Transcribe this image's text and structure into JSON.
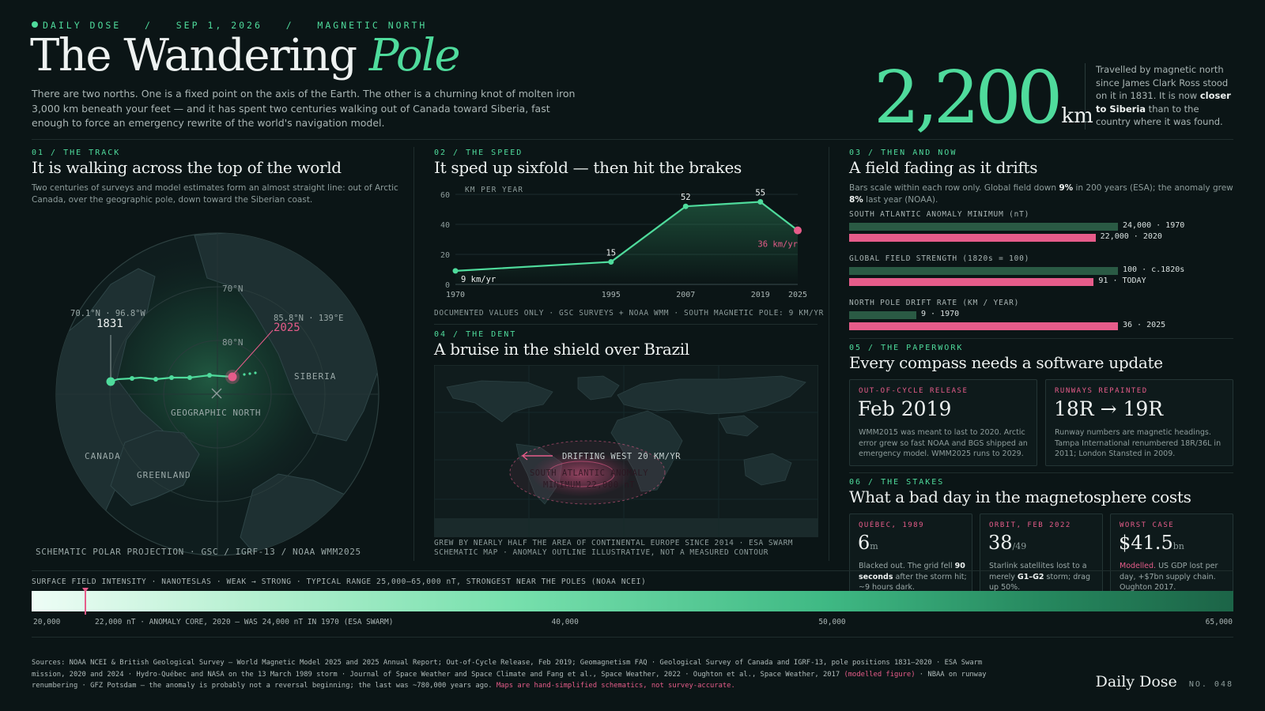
{
  "header": {
    "kicker_publication": "DAILY DOSE",
    "kicker_sep": "/",
    "kicker_date": "SEP 1, 2026",
    "kicker_topic": "MAGNETIC NORTH",
    "title_main": "The Wandering",
    "title_accent": "Pole",
    "intro": "There are two norths. One is a fixed point on the axis of the Earth. The other is a churning knot of molten iron 3,000 km beneath your feet — and it has spent two centuries walking out of Canada toward Siberia, fast enough to force an emergency rewrite of the world's navigation model.",
    "stat_value": "2,200",
    "stat_unit": "km",
    "stat_desc_1": "Travelled by magnetic north since James Clark Ross stood on it in 1831. It is now ",
    "stat_desc_bold": "closer to Siberia",
    "stat_desc_2": " than to the country where it was found."
  },
  "track": {
    "kicker": "01 / THE TRACK",
    "title": "It is walking across the top of the world",
    "desc": "Two centuries of surveys and model estimates form an almost straight line: out of Arctic Canada, over the geographic pole, down toward the Siberian coast.",
    "label_70n": "70°N",
    "label_80n": "80°N",
    "start_coord": "70.1°N · 96.8°W",
    "start_year": "1831",
    "end_coord": "85.8°N · 139°E",
    "end_year": "2025",
    "siberia": "SIBERIA",
    "geo_north": "GEOGRAPHIC NORTH",
    "canada": "CANADA",
    "greenland": "GREENLAND",
    "footer": "SCHEMATIC POLAR PROJECTION · GSC / IGRF-13 / NOAA WMM2025"
  },
  "speed": {
    "kicker": "02 / THE SPEED",
    "title": "It sped up sixfold — then hit the brakes",
    "unit_label": "KM PER YEAR",
    "footer": "DOCUMENTED VALUES ONLY · GSC SURVEYS + NOAA WMM · SOUTH MAGNETIC POLE: 9 KM/YR",
    "chart_data": {
      "type": "line",
      "x": [
        1970,
        1995,
        2007,
        2019,
        2025
      ],
      "values": [
        9,
        15,
        52,
        55,
        36
      ],
      "point_labels": [
        "9 km/yr",
        "15",
        "52",
        "55",
        "36 km/yr"
      ],
      "x_ticks": [
        "1970",
        "1995",
        "2007",
        "2019",
        "2025"
      ],
      "y_ticks": [
        "0",
        "20",
        "40",
        "60"
      ],
      "ylim": [
        0,
        60
      ],
      "xlim": [
        1970,
        2025
      ],
      "ylabel": "KM PER YEAR"
    }
  },
  "dent": {
    "kicker": "04 / THE DENT",
    "title": "A bruise in the shield over Brazil",
    "drift_label": "DRIFTING WEST 20 KM/YR",
    "anomaly_line1": "SOUTH ATLANTIC ANOMALY",
    "anomaly_line2": "MINIMUM 22,000 nT",
    "footer_line1": "GREW BY NEARLY HALF THE AREA OF CONTINENTAL EUROPE SINCE 2014 · ESA SWARM",
    "footer_line2": "SCHEMATIC MAP · ANOMALY OUTLINE ILLUSTRATIVE, NOT A MEASURED CONTOUR"
  },
  "then_now": {
    "kicker": "03 / THEN AND NOW",
    "title": "A field fading as it drifts",
    "desc_1": "Bars scale within each row only. Global field down ",
    "desc_b1": "9%",
    "desc_2": " in 200 years (ESA); the anomaly grew ",
    "desc_b2": "8%",
    "desc_3": " last year (NOAA).",
    "rows": [
      {
        "label": "SOUTH ATLANTIC ANOMALY MINIMUM (nT)",
        "then_value": 24000,
        "now_value": 22000,
        "then_text": "24,000 · 1970",
        "now_text": "22,000 · 2020"
      },
      {
        "label": "GLOBAL FIELD STRENGTH (1820s = 100)",
        "then_value": 100,
        "now_value": 91,
        "then_text": "100 · c.1820s",
        "now_text": "91 · TODAY"
      },
      {
        "label": "NORTH POLE DRIFT RATE (KM / YEAR)",
        "then_value": 9,
        "now_value": 36,
        "then_text": "9 · 1970",
        "now_text": "36 · 2025"
      }
    ]
  },
  "paperwork": {
    "kicker": "05 / THE PAPERWORK",
    "title": "Every compass needs a software update",
    "card1_kicker": "OUT-OF-CYCLE RELEASE",
    "card1_value": "Feb 2019",
    "card1_desc": "WMM2015 was meant to last to 2020. Arctic error grew so fast NOAA and BGS shipped an emergency model. WMM2025 runs to 2029.",
    "card2_kicker": "RUNWAYS REPAINTED",
    "card2_value": "18R → 19R",
    "card2_desc": "Runway numbers are magnetic headings. Tampa International renumbered 18R/36L in 2011; London Stansted in 2009."
  },
  "stakes": {
    "kicker": "06 / THE STAKES",
    "title": "What a bad day in the magnetosphere costs",
    "card1_kicker": "QUÉBEC, 1989",
    "card1_value": "6",
    "card1_unit": "m",
    "card1_desc_1": "Blacked out. The grid fell ",
    "card1_desc_b": "90 seconds",
    "card1_desc_2": " after the storm hit; ~9 hours dark.",
    "card2_kicker": "ORBIT, FEB 2022",
    "card2_value": "38",
    "card2_unit": "/49",
    "card2_desc_1": "Starlink satellites lost to a merely ",
    "card2_desc_b": "G1–G2",
    "card2_desc_2": " storm; drag up 50%.",
    "card3_kicker": "WORST CASE",
    "card3_value": "$41.5",
    "card3_unit": "bn",
    "card3_desc_p": "Modelled.",
    "card3_desc_2": " US GDP lost per day, +$7bn supply chain. Oughton 2017."
  },
  "scale": {
    "caption": "SURFACE FIELD INTENSITY · NANOTESLAS · WEAK → STRONG · TYPICAL RANGE 25,000–65,000 nT, STRONGEST NEAR THE POLES (NOAA NCEI)",
    "min_label": "20,000",
    "marker_label": "22,000 nT · ANOMALY CORE, 2020 — WAS 24,000 nT IN 1970 (ESA SWARM)",
    "tick_40": "40,000",
    "tick_50": "50,000",
    "max_label": "65,000",
    "marker_value": 22000,
    "range": [
      20000,
      65000
    ],
    "colors": [
      "#eefdf6",
      "#4fdb9c",
      "#1c6447"
    ]
  },
  "sources": {
    "text_1": "Sources: NOAA NCEI & British Geological Survey — World Magnetic Model 2025 and 2025 Annual Report; Out-of-Cycle Release, Feb 2019; Geomagnetism FAQ · Geological Survey of Canada and IGRF-13, pole positions 1831–2020 · ESA Swarm mission, 2020 and 2024 · Hydro-Québec and NASA on the 13 March 1989 storm · Journal of Space Weather and Space Climate and Fang et al., Space Weather, 2022 · Oughton et al., Space Weather, 2017 ",
    "text_pink": "(modelled figure)",
    "text_2": " · NBAA on runway renumbering · GFZ Potsdam — the anomaly is probably not a reversal beginning; the last was ~780,000 years ago. ",
    "text_pink2": "Maps are hand-simplified schematics, not survey-accurate."
  },
  "footer": {
    "brand": "Daily Dose",
    "issue": "NO. 048"
  },
  "colors": {
    "accent_green": "#4fdb9c",
    "accent_pink": "#e65c8a",
    "background": "#0b1516"
  }
}
